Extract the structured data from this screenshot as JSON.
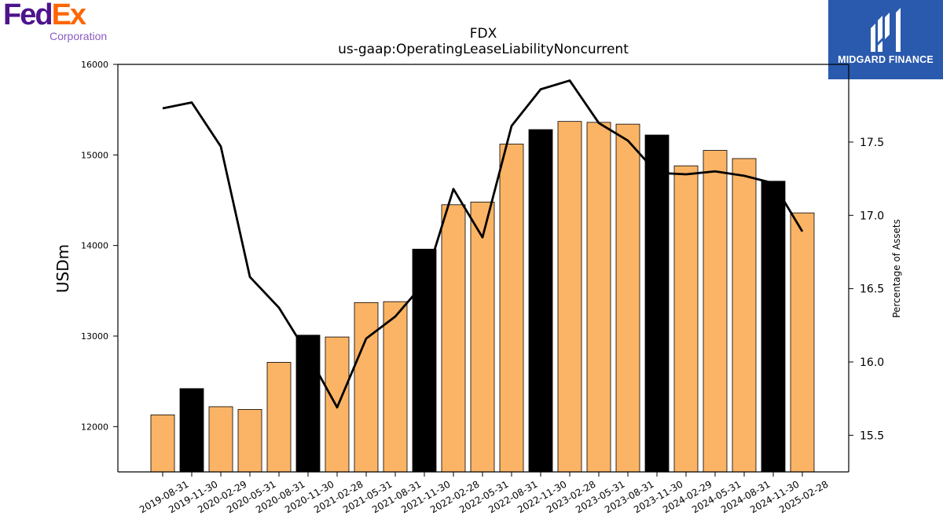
{
  "company_logo": {
    "part1": "Fed",
    "part2": "Ex",
    "subtitle": "Corporation"
  },
  "brand_logo": {
    "name": "MIDGARD FINANCE"
  },
  "colors": {
    "bar": "#fbb465",
    "bar_highlight": "#000000",
    "line": "#000000",
    "brand_bg": "#2a5aad"
  },
  "chart_data": {
    "type": "bar",
    "title": "FDX",
    "subtitle": "us-gaap:OperatingLeaseLiabilityNoncurrent",
    "ylabel": "USDm",
    "y2label": "Percentage of Assets",
    "ylim": [
      11500,
      16000
    ],
    "y2lim": [
      15.25,
      18.03
    ],
    "yticks": [
      "12000",
      "13000",
      "14000",
      "15000",
      "16000"
    ],
    "y2ticks": [
      "15.5",
      "16.0",
      "16.5",
      "17.0",
      "17.5"
    ],
    "categories": [
      "2019-08-31",
      "2019-11-30",
      "2020-02-29",
      "2020-05-31",
      "2020-08-31",
      "2020-11-30",
      "2021-02-28",
      "2021-05-31",
      "2021-08-31",
      "2021-11-30",
      "2022-02-28",
      "2022-05-31",
      "2022-08-31",
      "2022-11-30",
      "2023-02-28",
      "2023-05-31",
      "2023-08-31",
      "2023-11-30",
      "2024-02-29",
      "2024-05-31",
      "2024-08-31",
      "2024-11-30",
      "2025-02-28"
    ],
    "series": [
      {
        "values": [
          12130,
          12420,
          12220,
          12190,
          12710,
          13010,
          12990,
          13370,
          13380,
          13960,
          14450,
          14480,
          15120,
          15280,
          15370,
          15360,
          15340,
          15220,
          14880,
          15050,
          14960,
          14710,
          14360
        ],
        "highlighted": [
          false,
          true,
          false,
          false,
          false,
          true,
          false,
          false,
          false,
          true,
          false,
          false,
          false,
          true,
          false,
          false,
          false,
          true,
          false,
          false,
          false,
          true,
          false
        ]
      },
      {
        "axis": "right",
        "type": "line",
        "values": [
          17.73,
          17.77,
          17.47,
          16.58,
          16.37,
          16.05,
          15.69,
          16.16,
          16.31,
          16.54,
          17.18,
          16.85,
          17.61,
          17.86,
          17.92,
          17.63,
          17.51,
          17.29,
          17.28,
          17.3,
          17.27,
          17.22,
          16.89
        ]
      }
    ]
  }
}
